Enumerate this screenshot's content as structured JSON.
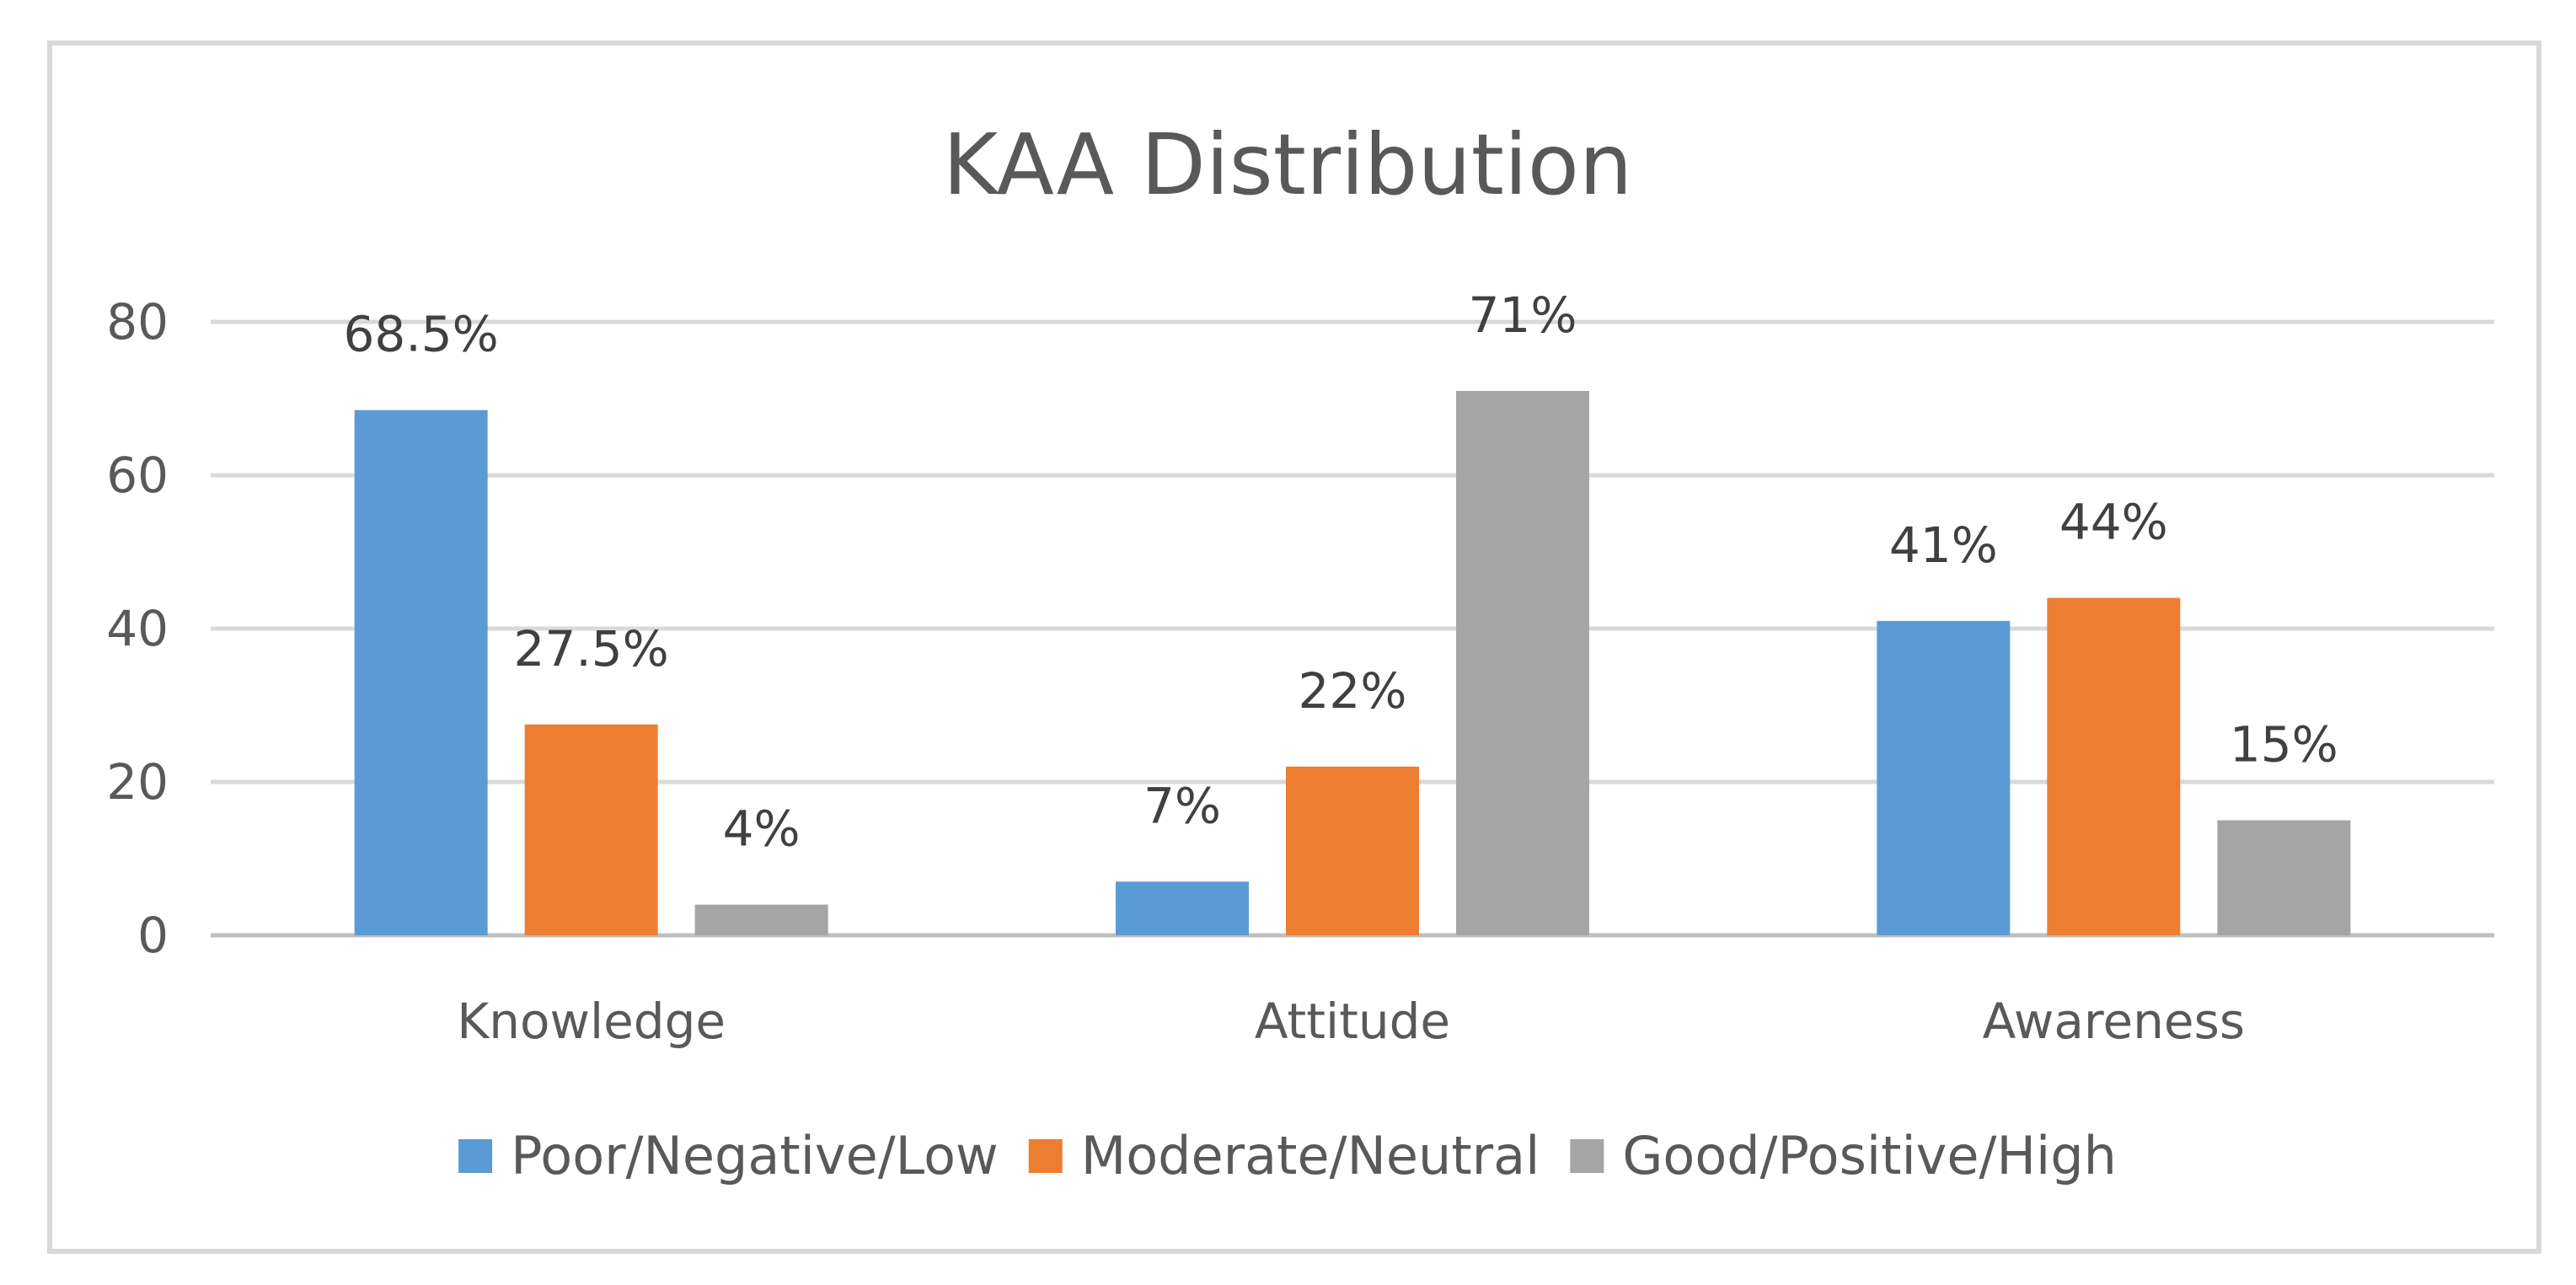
{
  "chart_data": {
    "type": "bar",
    "title": "KAA Distribution",
    "categories": [
      "Knowledge",
      "Attitude",
      "Awareness"
    ],
    "series": [
      {
        "name": "Poor/Negative/Low",
        "color": "#5b9bd5",
        "values": [
          68.5,
          7,
          41
        ],
        "labels": [
          "68.5%",
          "7%",
          "41%"
        ]
      },
      {
        "name": "Moderate/Neutral",
        "color": "#ed7d31",
        "values": [
          27.5,
          22,
          44
        ],
        "labels": [
          "27.5%",
          "22%",
          "44%"
        ]
      },
      {
        "name": "Good/Positive/High",
        "color": "#a5a5a5",
        "values": [
          4,
          71,
          15
        ],
        "labels": [
          "4%",
          "71%",
          "15%"
        ]
      }
    ],
    "ylim": [
      0,
      80
    ],
    "yticks": [
      0,
      20,
      40,
      60,
      80
    ],
    "ytick_labels": [
      "0",
      "20",
      "40",
      "60",
      "80"
    ],
    "xlabel": "",
    "ylabel": "",
    "grid": true,
    "legend": "bottom"
  }
}
